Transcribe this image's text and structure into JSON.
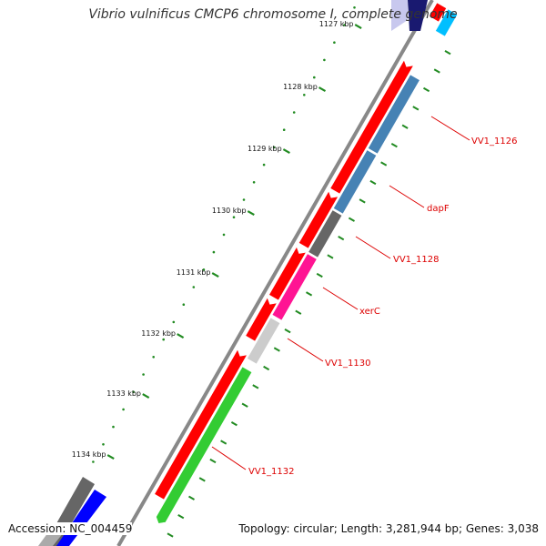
{
  "map": {
    "title": "Vibrio vulnificus CMCP6 chromosome I, complete genome",
    "accession_text": "Accession: NC_004459",
    "summary_text": "Topology: circular; Length: 3,281,944 bp; Genes: 3,038",
    "kbp_ticks": [
      "1127 kbp",
      "1128 kbp",
      "1129 kbp",
      "1130 kbp",
      "1131 kbp",
      "1132 kbp",
      "1133 kbp",
      "1134 kbp"
    ],
    "gene_labels": [
      "VV1_1126",
      "dapF",
      "VV1_1128",
      "xerC",
      "VV1_1130",
      "VV1_1132"
    ],
    "colors": {
      "backbone": "#888888",
      "red_track": "#ff0000",
      "gene_steelblue": "#4682b4",
      "gene_gray": "#666666",
      "gene_magenta": "#ff1493",
      "gene_lightgray": "#cccccc",
      "gene_green": "#33cc33",
      "gene_blue": "#0000ff",
      "gene_cyan": "#00bfff",
      "gene_navy": "#191970",
      "label_red": "#dd0000",
      "tick_green": "#228b22"
    }
  }
}
